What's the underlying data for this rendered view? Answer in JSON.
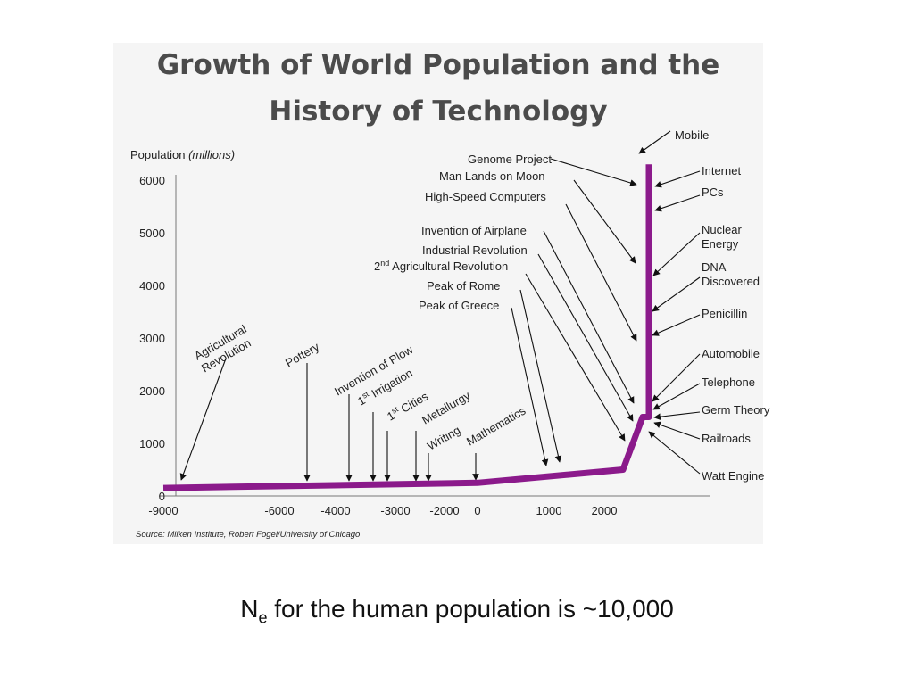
{
  "slide": {
    "title_line1": "Growth of World Population and the",
    "title_line2": "History of Technology",
    "caption_prefix": "N",
    "caption_sub": "e",
    "caption_rest": " for the human population is ~10,000"
  },
  "chart_data": {
    "type": "line",
    "title": "Growth of World Population and the History of Technology",
    "ylabel": "Population",
    "ylabel_unit": "(millions)",
    "ylim": [
      0,
      6000
    ],
    "xlim": [
      -9000,
      3000
    ],
    "yticks": [
      0,
      1000,
      2000,
      3000,
      4000,
      5000,
      6000
    ],
    "xticks": [
      -9000,
      -6000,
      -4000,
      -3000,
      -2000,
      0,
      1000,
      2000
    ],
    "grid": false,
    "line_color": "#8b1a8b",
    "series": [
      {
        "x": [
          -9000,
          0,
          1500,
          1750,
          1800,
          1800
        ],
        "y": [
          150,
          250,
          500,
          1500,
          1500,
          6300
        ]
      }
    ],
    "source": "Source: Milken Institute, Robert Fogel/University of Chicago",
    "events_left": [
      {
        "label": "Agricultural\nRevolution",
        "x": -9000,
        "y": 150
      },
      {
        "label": "Pottery",
        "x": -5000,
        "y": 200
      },
      {
        "label": "Invention of Plow",
        "x": -3700,
        "y": 200
      },
      {
        "label": "1st Irrigation",
        "x": -3200,
        "y": 200
      },
      {
        "label": "1st Cities",
        "x": -3000,
        "y": 200
      },
      {
        "label": "Metallurgy",
        "x": -2200,
        "y": 200
      },
      {
        "label": "Writing",
        "x": -2000,
        "y": 200
      },
      {
        "label": "Mathematics",
        "x": 0,
        "y": 250
      }
    ],
    "events_middle": [
      {
        "label": "Genome Project",
        "x": 1770,
        "y": 5800
      },
      {
        "label": "Man Lands on Moon",
        "x": 1720,
        "y": 4500
      },
      {
        "label": "High-Speed Computers",
        "x": 1720,
        "y": 2900
      },
      {
        "label": "Invention of Airplane",
        "x": 1730,
        "y": 1800
      },
      {
        "label": "Industrial Revolution",
        "x": 1700,
        "y": 1550
      },
      {
        "label": "2nd Agricultural Revolution",
        "x": 1450,
        "y": 800
      },
      {
        "label": "Peak of Rome",
        "x": 1000,
        "y": 800
      },
      {
        "label": "Peak of Greece",
        "x": 800,
        "y": 650
      }
    ],
    "events_right": [
      {
        "label": "Mobile",
        "x": 1800,
        "y": 6300
      },
      {
        "label": "Internet",
        "x": 1800,
        "y": 5900
      },
      {
        "label": "PCs",
        "x": 1800,
        "y": 5400
      },
      {
        "label": "Nuclear\nEnergy",
        "x": 1800,
        "y": 4200
      },
      {
        "label": "DNA\nDiscovered",
        "x": 1800,
        "y": 3500
      },
      {
        "label": "Penicillin",
        "x": 1800,
        "y": 3000
      },
      {
        "label": "Automobile",
        "x": 1800,
        "y": 1800
      },
      {
        "label": "Telephone",
        "x": 1800,
        "y": 1600
      },
      {
        "label": "Germ Theory",
        "x": 1800,
        "y": 1500
      },
      {
        "label": "Railroads",
        "x": 1800,
        "y": 1400
      },
      {
        "label": "Watt Engine",
        "x": 1750,
        "y": 1300
      }
    ]
  }
}
